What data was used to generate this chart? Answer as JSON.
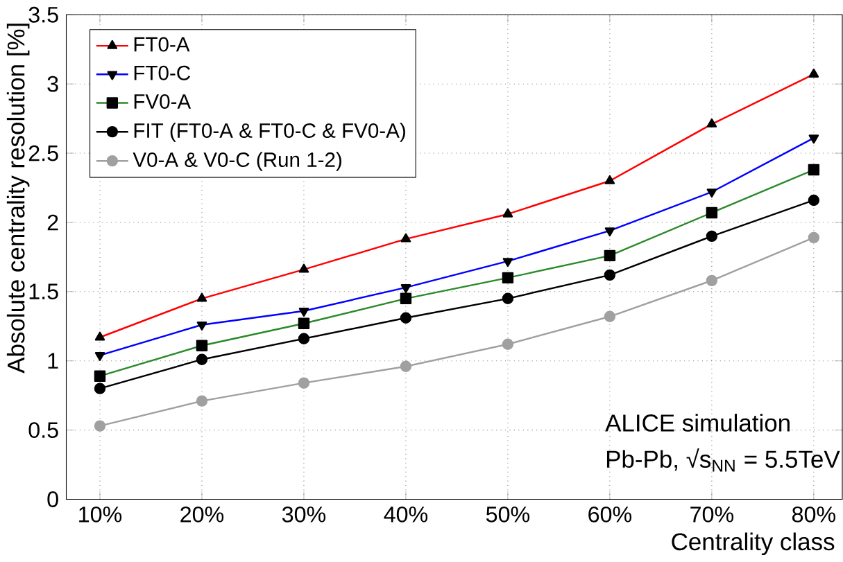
{
  "chart_data": {
    "type": "line",
    "xlabel": "Centrality class",
    "ylabel": "Absolute centrality resolution [%]",
    "categories": [
      "10%",
      "20%",
      "30%",
      "40%",
      "50%",
      "60%",
      "70%",
      "80%"
    ],
    "ylim": [
      0,
      3.5
    ],
    "yticks": [
      0,
      0.5,
      1,
      1.5,
      2,
      2.5,
      3,
      3.5
    ],
    "grid": true,
    "legend": "top left",
    "series": [
      {
        "name": "FT0-A",
        "color": "#ff0000",
        "marker": "triangle",
        "values": [
          1.17,
          1.45,
          1.66,
          1.88,
          2.06,
          2.3,
          2.71,
          3.07
        ]
      },
      {
        "name": "FT0-C",
        "color": "#0000ff",
        "marker": "triangle-down",
        "values": [
          1.04,
          1.26,
          1.36,
          1.53,
          1.72,
          1.94,
          2.22,
          2.61
        ]
      },
      {
        "name": "FV0-A",
        "color": "#2a8a2a",
        "marker": "square",
        "values": [
          0.89,
          1.11,
          1.27,
          1.45,
          1.6,
          1.76,
          2.07,
          2.38
        ]
      },
      {
        "name": "FIT (FT0-A  &  FT0-C  &  FV0-A)",
        "color": "#000000",
        "marker": "circle",
        "values": [
          0.8,
          1.01,
          1.16,
          1.31,
          1.45,
          1.62,
          1.9,
          2.16
        ]
      },
      {
        "name": "V0-A  &  V0-C  (Run 1-2)",
        "color": "#a0a0a0",
        "marker": "circle",
        "values": [
          0.53,
          0.71,
          0.84,
          0.96,
          1.12,
          1.32,
          1.58,
          1.89
        ]
      }
    ],
    "annotations": [
      "ALICE simulation",
      "Pb-Pb, √s$_{NN}$ = 5.5TeV"
    ]
  }
}
